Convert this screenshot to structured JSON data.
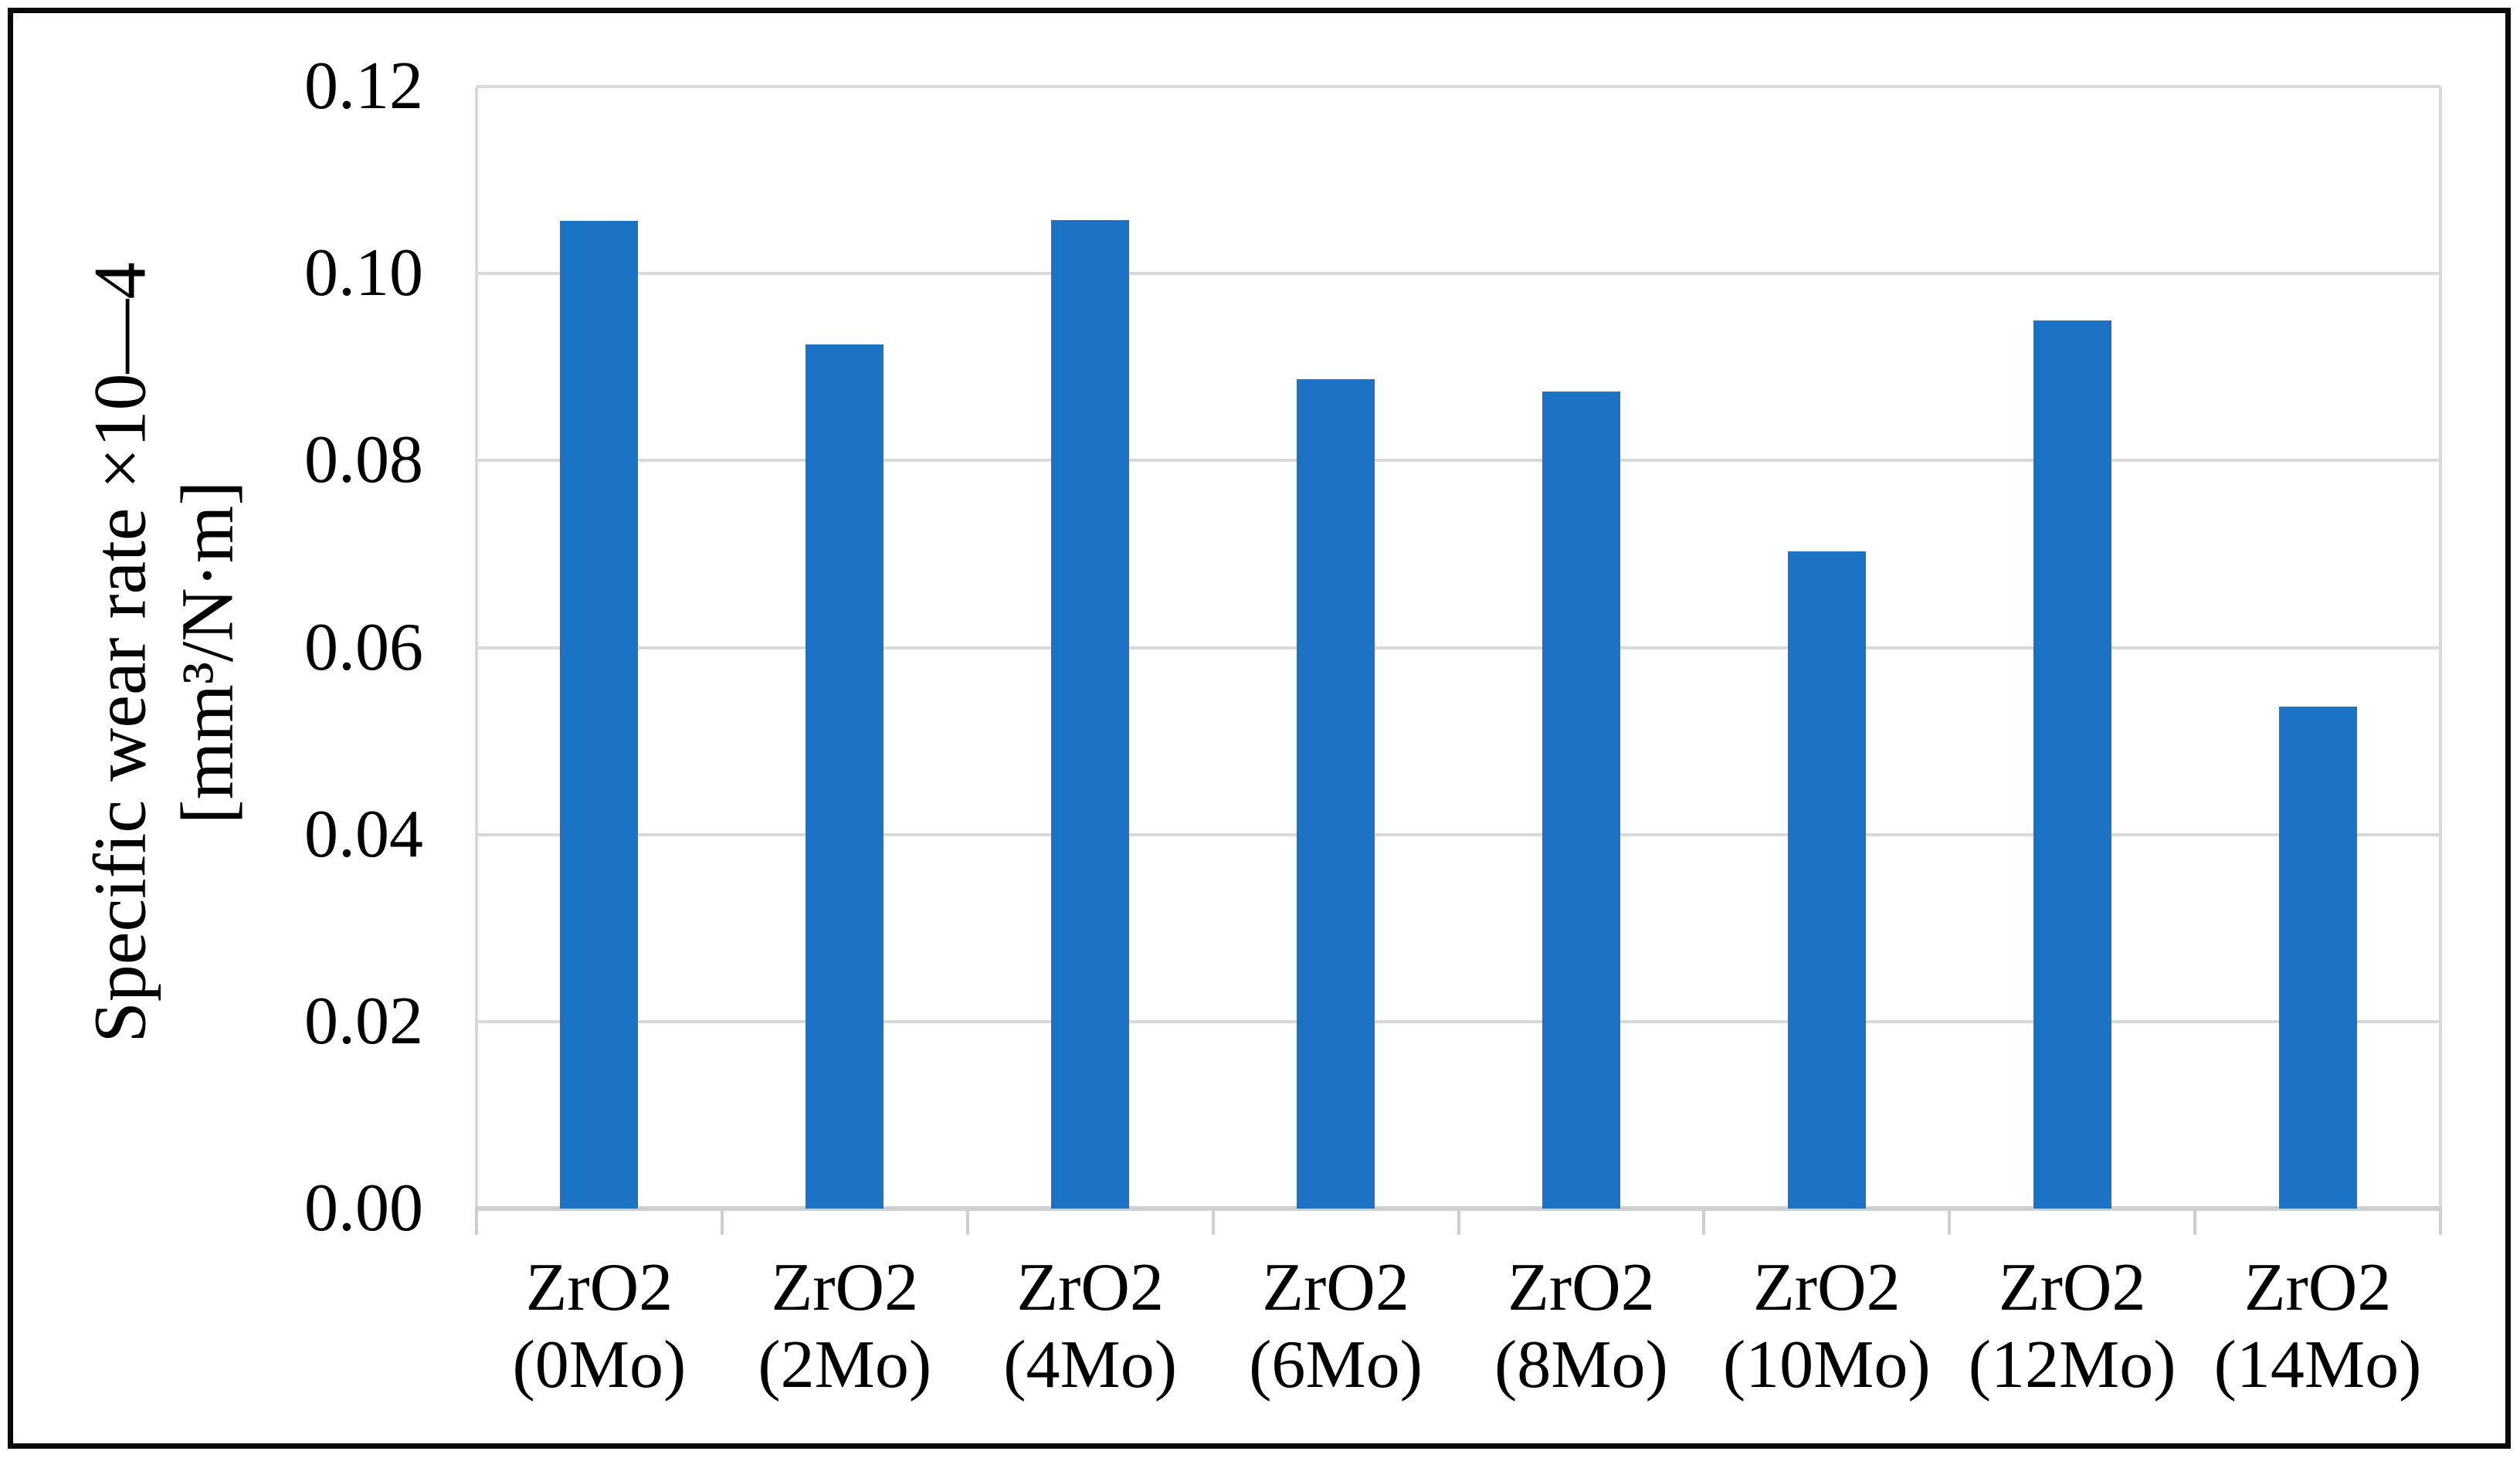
{
  "chart_data": {
    "type": "bar",
    "ylabel_line1": "Specific wear rate ×10—4",
    "ylabel_line2": "[mm³/N·m]",
    "ylim": [
      0,
      0.12
    ],
    "ytick_step": 0.02,
    "ytick_labels": [
      "0.12",
      "0.10",
      "0.08",
      "0.06",
      "0.04",
      "0.02",
      "0.00"
    ],
    "grid": "horizontal",
    "legend": "none",
    "categories": [
      "ZrO2 (0Mo)",
      "ZrO2 (2Mo)",
      "ZrO2 (4Mo)",
      "ZrO2 (6Mo)",
      "ZrO2 (8Mo)",
      "ZrO2 (10Mo)",
      "ZrO2 (12Mo)",
      "ZrO2 (14Mo)"
    ],
    "category_lines": [
      [
        "ZrO2",
        "(0Mo)"
      ],
      [
        "ZrO2",
        "(2Mo)"
      ],
      [
        "ZrO2",
        "(4Mo)"
      ],
      [
        "ZrO2",
        "(6Mo)"
      ],
      [
        "ZrO2",
        "(8Mo)"
      ],
      [
        "ZrO2",
        "(10Mo)"
      ],
      [
        "ZrO2",
        "(12Mo)"
      ],
      [
        "ZrO2",
        "(14Mo)"
      ]
    ],
    "values": [
      0.1056,
      0.0924,
      0.1057,
      0.0887,
      0.0874,
      0.0703,
      0.095,
      0.0537
    ]
  },
  "colors": {
    "bar": "#1C73C6",
    "gridline": "#D9D9D9",
    "axis_line": "#CFCFCF",
    "text": "#000000",
    "frame": "#0A0A0A",
    "background": "#FFFFFF"
  }
}
